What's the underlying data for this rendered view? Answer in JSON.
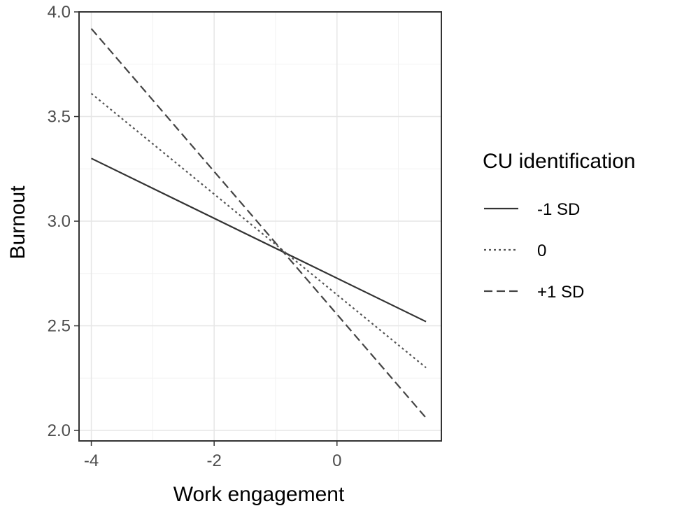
{
  "chart_data": {
    "type": "line",
    "title": "",
    "xlabel": "Work engagement",
    "ylabel": "Burnout",
    "xlim": [
      -4.2,
      1.7
    ],
    "ylim": [
      1.95,
      4.0
    ],
    "x_ticks": [
      -4,
      -2,
      0
    ],
    "x_tick_labels": [
      "-4",
      "-2",
      "0"
    ],
    "y_ticks": [
      2.0,
      2.5,
      3.0,
      3.5,
      4.0
    ],
    "y_tick_labels": [
      "2.0",
      "2.5",
      "3.0",
      "3.5",
      "4.0"
    ],
    "grid": true,
    "legend_title": "CU identification",
    "legend_position": "right",
    "series": [
      {
        "name": "-1 SD",
        "linetype": "solid",
        "color": "#333333",
        "x": [
          -4.0,
          1.45
        ],
        "y": [
          3.3,
          2.52
        ]
      },
      {
        "name": "0",
        "linetype": "dotted",
        "color": "#555555",
        "x": [
          -4.0,
          1.45
        ],
        "y": [
          3.61,
          2.3
        ]
      },
      {
        "name": "+1 SD",
        "linetype": "dashed",
        "color": "#444444",
        "x": [
          -4.0,
          1.45
        ],
        "y": [
          3.92,
          2.06
        ]
      }
    ]
  }
}
